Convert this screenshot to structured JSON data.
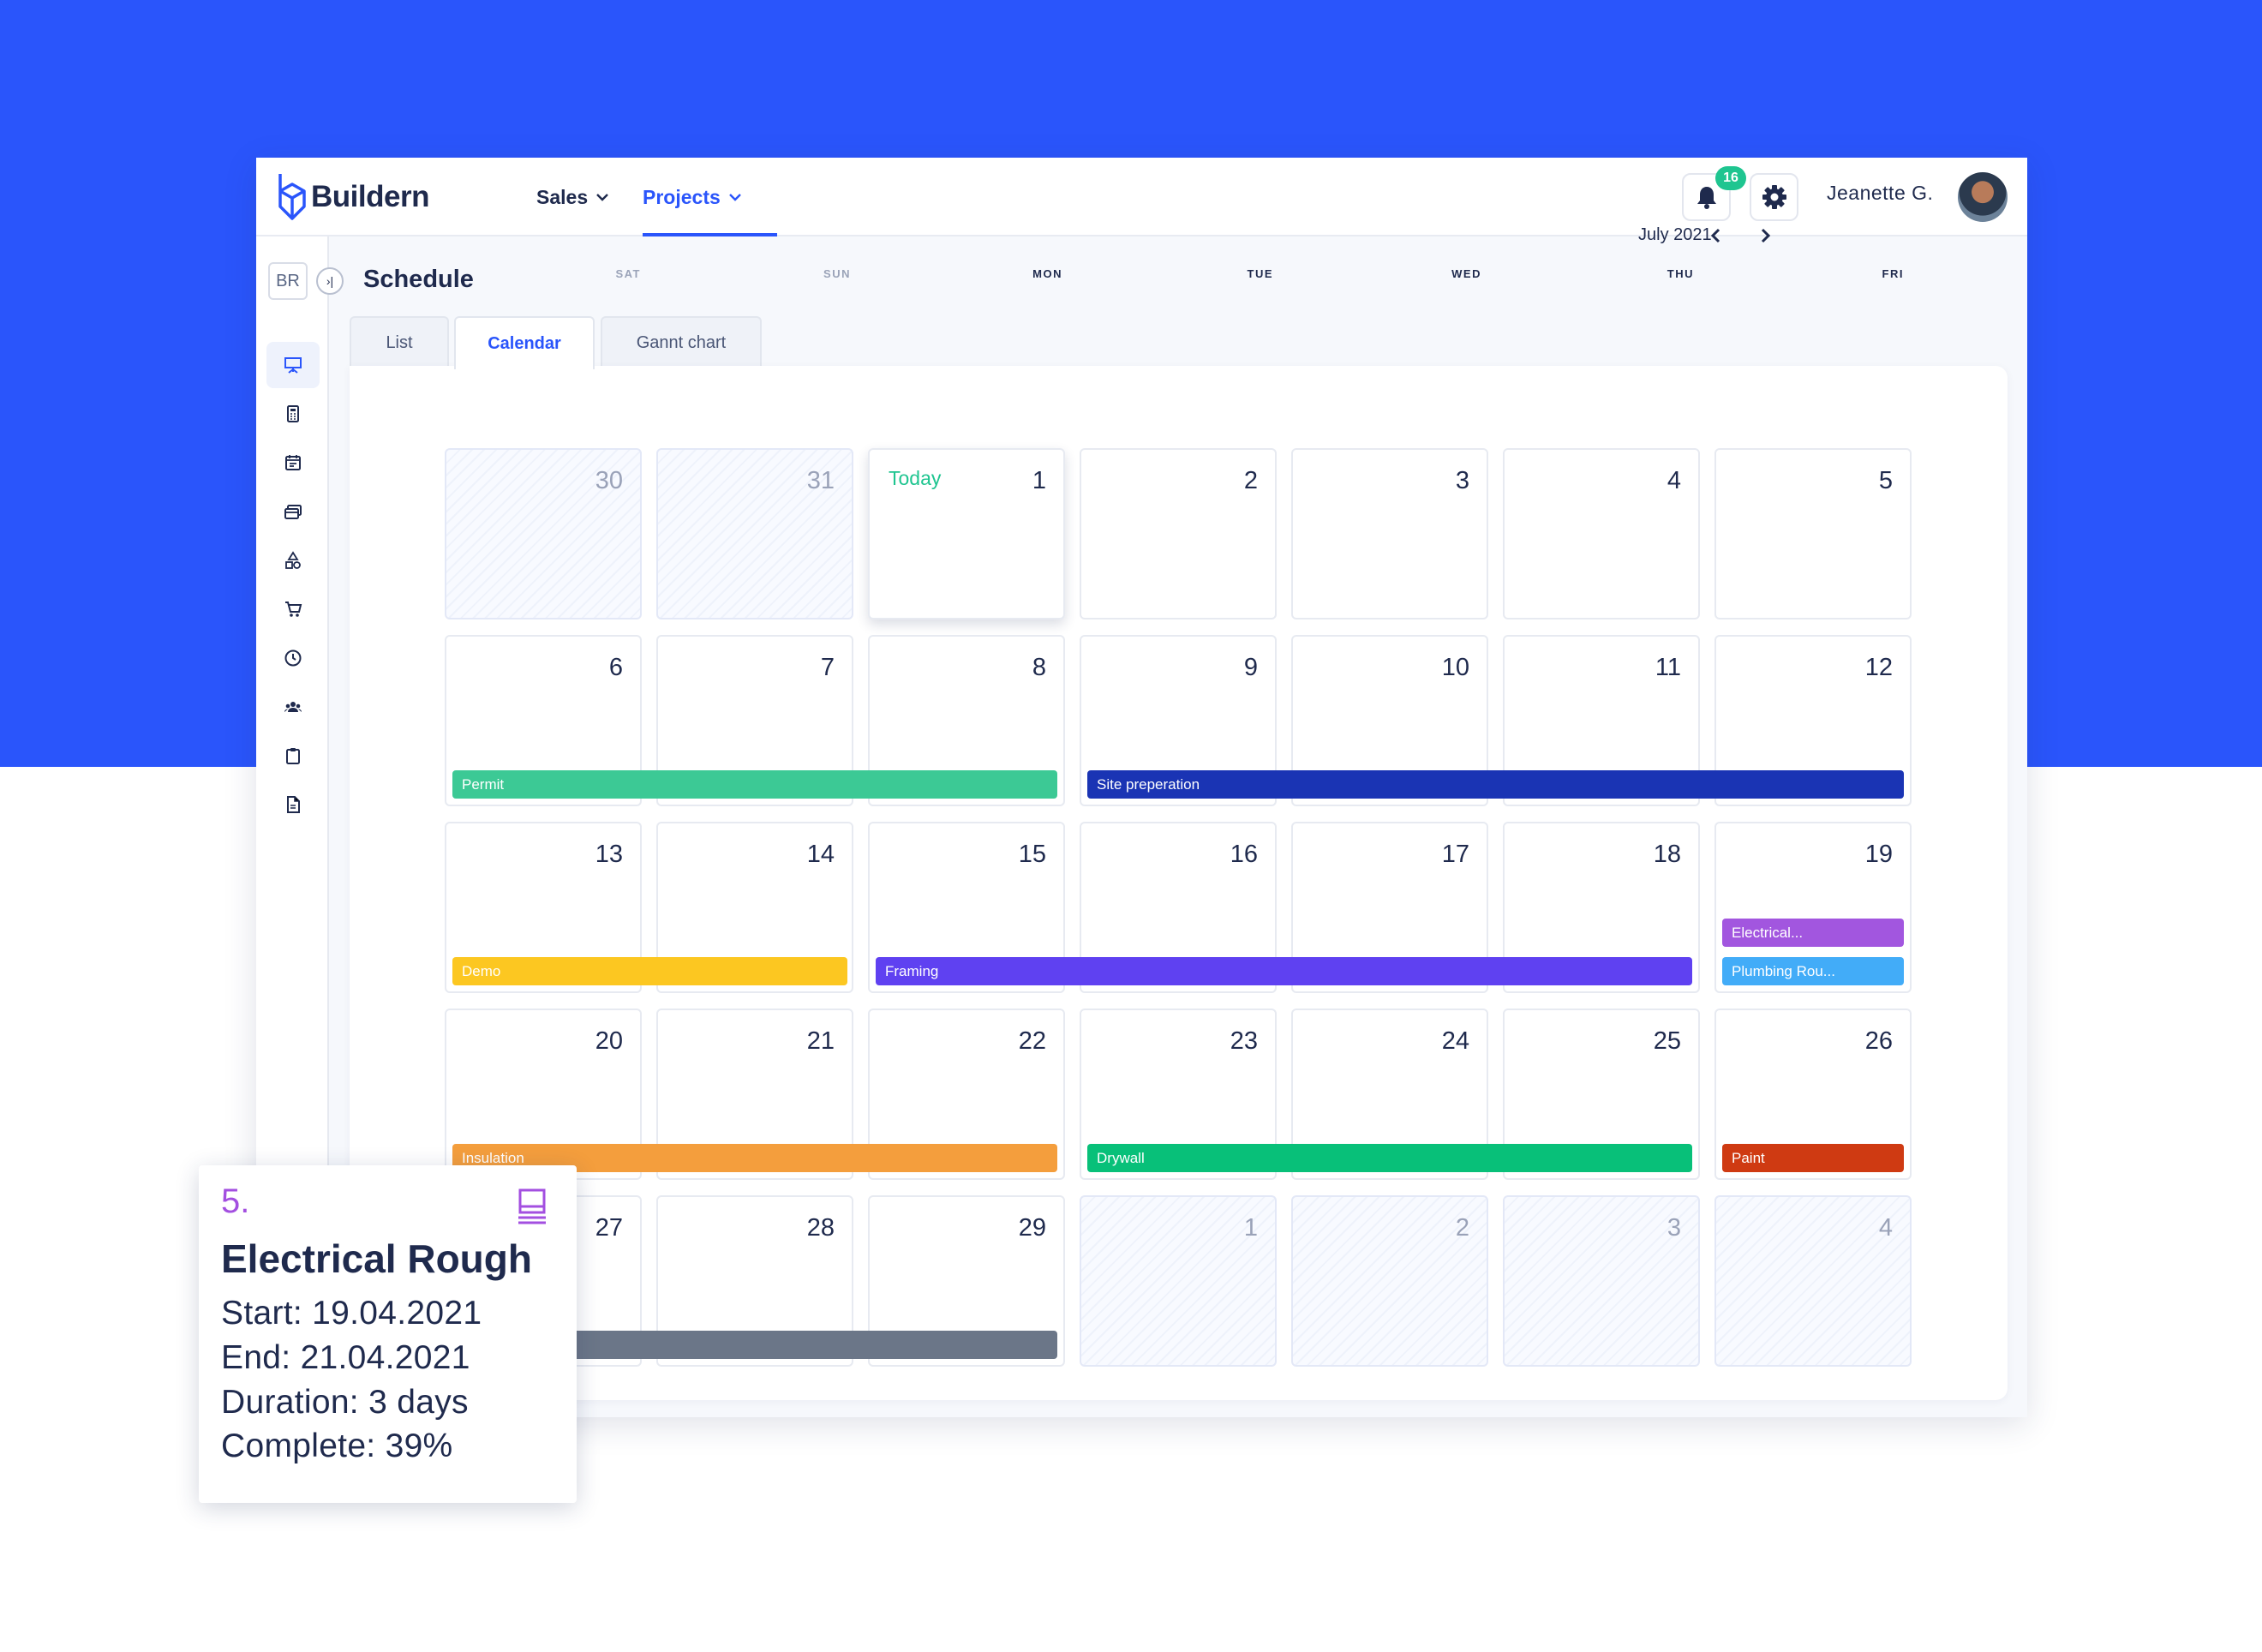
{
  "brand": {
    "name": "Buildern"
  },
  "nav": [
    {
      "label": "Sales"
    },
    {
      "label": "Projects"
    }
  ],
  "notifications": {
    "count": "16"
  },
  "user": {
    "name": "Jeanette  G."
  },
  "sidebar": {
    "badge": "BR",
    "collapse_symbol": "›|"
  },
  "page": {
    "title": "Schedule"
  },
  "tabs": [
    {
      "label": "List"
    },
    {
      "label": "Calendar"
    },
    {
      "label": "Gannt chart"
    }
  ],
  "calendar": {
    "month": "July 2021",
    "days_of_week": [
      "SAT",
      "SUN",
      "MON",
      "TUE",
      "WED",
      "THU",
      "FRI"
    ],
    "today_label": "Today",
    "weeks": [
      [
        "30",
        "31",
        "1",
        "2",
        "3",
        "4",
        "5"
      ],
      [
        "6",
        "7",
        "8",
        "9",
        "10",
        "11",
        "12"
      ],
      [
        "13",
        "14",
        "15",
        "16",
        "17",
        "18",
        "19"
      ],
      [
        "20",
        "21",
        "22",
        "23",
        "24",
        "25",
        "26"
      ],
      [
        "27",
        "28",
        "29",
        "1",
        "2",
        "3",
        "4"
      ]
    ],
    "events": [
      {
        "label": "Permit",
        "color": "#3cc995"
      },
      {
        "label": "Site preperation",
        "color": "#1a34b4"
      },
      {
        "label": "Electrical...",
        "color": "#a256df"
      },
      {
        "label": "Plumbing Rou...",
        "color": "#42acf8"
      },
      {
        "label": "Demo",
        "color": "#fcc721"
      },
      {
        "label": "Framing",
        "color": "#5f41f1"
      },
      {
        "label": "Insulation",
        "color": "#f49e3d"
      },
      {
        "label": "Drywall",
        "color": "#08c079"
      },
      {
        "label": "Paint",
        "color": "#cf3a12"
      },
      {
        "label": "",
        "color": "#6b7688"
      }
    ]
  },
  "tooltip": {
    "number": "5.",
    "title": "Electrical Rough",
    "start": "Start: 19.04.2021",
    "end": "End: 21.04.2021",
    "duration": "Duration: 3 days",
    "complete": "Complete: 39%"
  },
  "colors": {
    "brand_blue": "#2a55fb",
    "today_green": "#1fc590",
    "accent_purple": "#a34fe0"
  }
}
